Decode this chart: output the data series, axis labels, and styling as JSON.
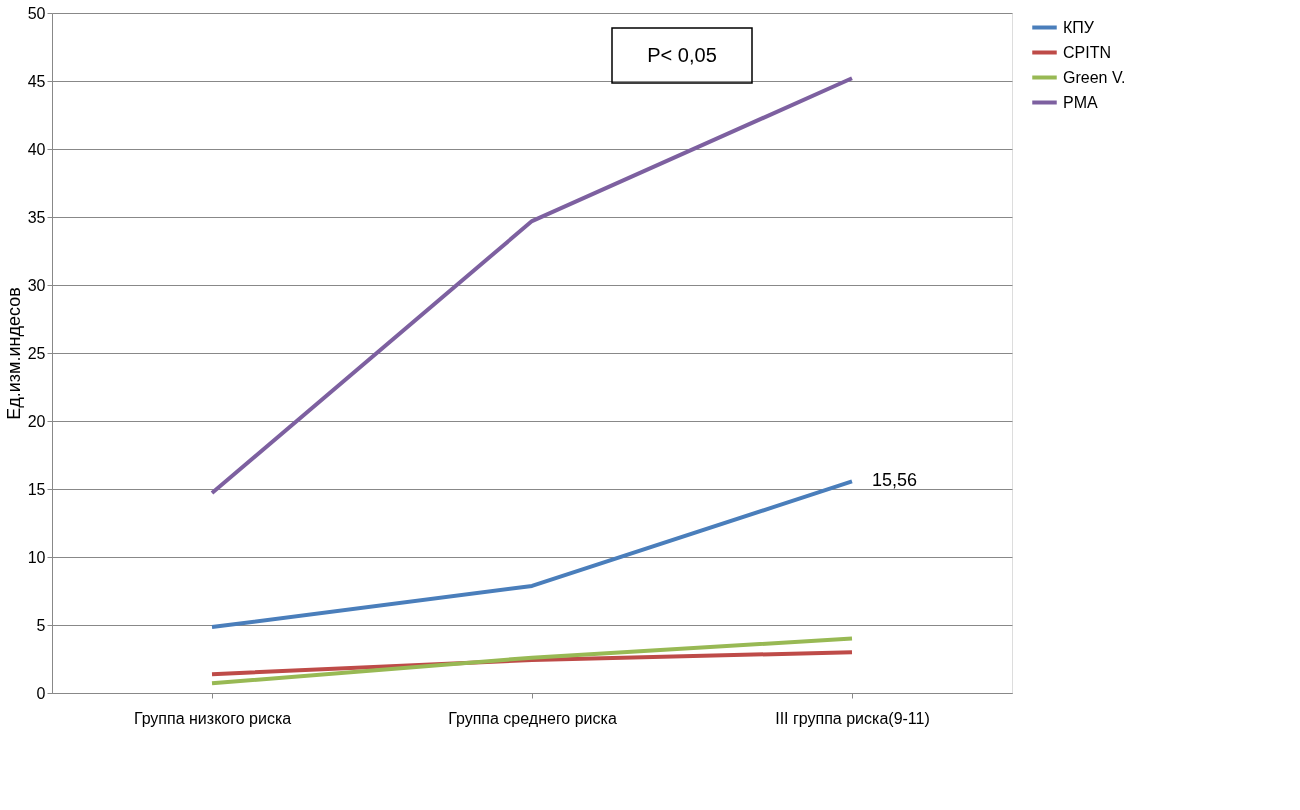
{
  "chart_data": {
    "type": "line",
    "ylabel": "Ед.изм.индесов",
    "categories": [
      "Группа низкого риска",
      "Группа среднего риска",
      "III группа риска(9-11)"
    ],
    "series": [
      {
        "name": "КПУ",
        "color": "#4a7ebb",
        "values": [
          4.85,
          7.87,
          15.56
        ]
      },
      {
        "name": "CPITN",
        "color": "#be4b48",
        "values": [
          1.38,
          2.43,
          3.0
        ]
      },
      {
        "name": "Green V.",
        "color": "#98b954",
        "values": [
          0.71,
          2.6,
          4.0
        ]
      },
      {
        "name": "PMA",
        "color": "#7d60a0",
        "values": [
          14.7,
          34.7,
          45.2
        ]
      }
    ],
    "annotations": [
      {
        "text": "15,56",
        "x": "III группа риска(9-11)",
        "y": 15.56
      },
      "P< 0,05"
    ],
    "ylim": [
      0,
      50
    ],
    "yticks": [
      0,
      5,
      10,
      15,
      20,
      25,
      30,
      35,
      40,
      45,
      50
    ],
    "grid": "y",
    "legend": "right",
    "marker": "none",
    "line_style": "solid"
  }
}
